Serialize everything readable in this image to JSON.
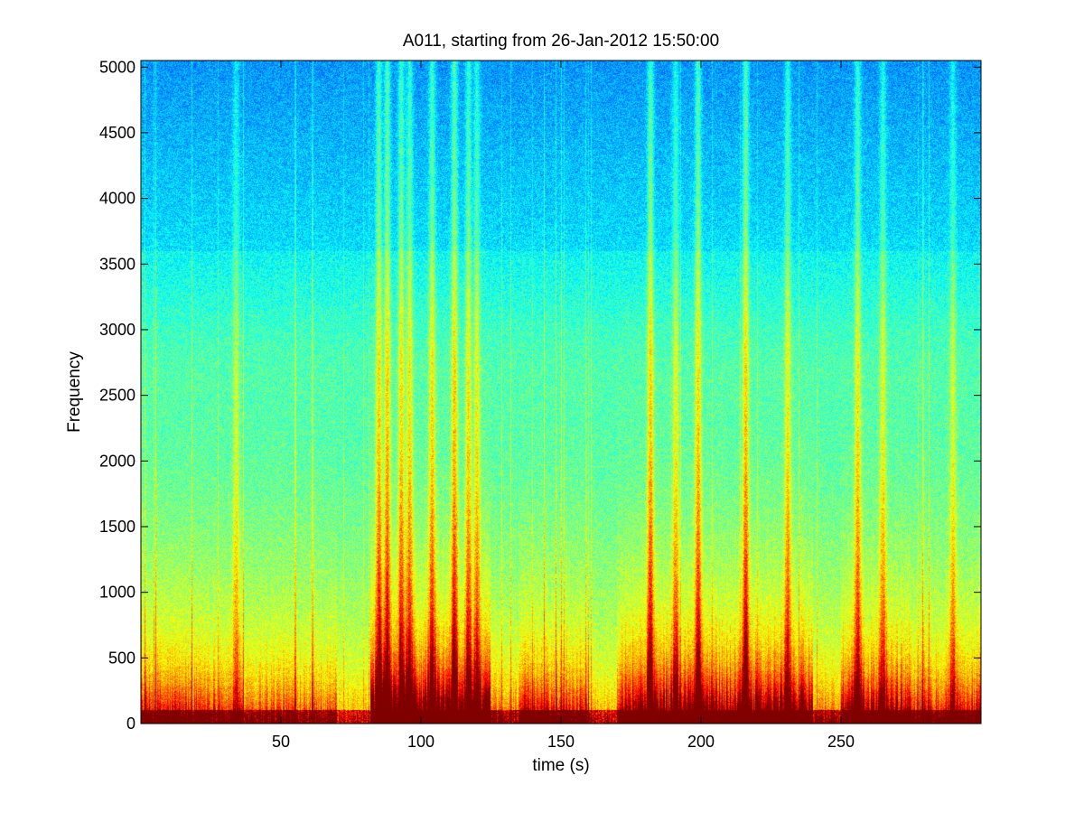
{
  "chart_data": {
    "type": "heatmap",
    "title": "A011, starting from 26-Jan-2012 15:50:00",
    "xlabel": "time (s)",
    "ylabel": "Frequency",
    "xlim": [
      0,
      300
    ],
    "ylim": [
      0,
      5050
    ],
    "x_ticks": [
      50,
      100,
      150,
      200,
      250
    ],
    "y_ticks": [
      0,
      500,
      1000,
      1500,
      2000,
      2500,
      3000,
      3500,
      4000,
      4500,
      5000
    ],
    "colormap": "jet",
    "colormap_stops": [
      "#00008f",
      "#0000ff",
      "#00ffff",
      "#ffff00",
      "#ff0000",
      "#800000"
    ],
    "grid": false,
    "broadband_events": [
      {
        "t": 34,
        "strength": 0.55
      },
      {
        "t": 85,
        "strength": 0.95
      },
      {
        "t": 88,
        "strength": 1.0
      },
      {
        "t": 93,
        "strength": 0.9
      },
      {
        "t": 96,
        "strength": 0.85
      },
      {
        "t": 104,
        "strength": 0.9
      },
      {
        "t": 112,
        "strength": 1.0
      },
      {
        "t": 117,
        "strength": 0.85
      },
      {
        "t": 120,
        "strength": 0.75
      },
      {
        "t": 182,
        "strength": 1.0
      },
      {
        "t": 191,
        "strength": 0.7
      },
      {
        "t": 199,
        "strength": 0.95
      },
      {
        "t": 216,
        "strength": 1.0
      },
      {
        "t": 231,
        "strength": 0.8
      },
      {
        "t": 256,
        "strength": 0.85
      },
      {
        "t": 265,
        "strength": 0.7
      },
      {
        "t": 290,
        "strength": 0.6
      }
    ],
    "low_freq_activity": [
      {
        "t_start": 0,
        "t_end": 30,
        "level": 0.55
      },
      {
        "t_start": 30,
        "t_end": 70,
        "level": 0.45
      },
      {
        "t_start": 70,
        "t_end": 82,
        "level": 0.2
      },
      {
        "t_start": 82,
        "t_end": 125,
        "level": 0.95
      },
      {
        "t_start": 125,
        "t_end": 135,
        "level": 0.35
      },
      {
        "t_start": 135,
        "t_end": 160,
        "level": 0.6
      },
      {
        "t_start": 160,
        "t_end": 170,
        "level": 0.25
      },
      {
        "t_start": 170,
        "t_end": 240,
        "level": 0.85
      },
      {
        "t_start": 240,
        "t_end": 250,
        "level": 0.35
      },
      {
        "t_start": 250,
        "t_end": 275,
        "level": 0.75
      },
      {
        "t_start": 275,
        "t_end": 300,
        "level": 0.6
      }
    ]
  }
}
